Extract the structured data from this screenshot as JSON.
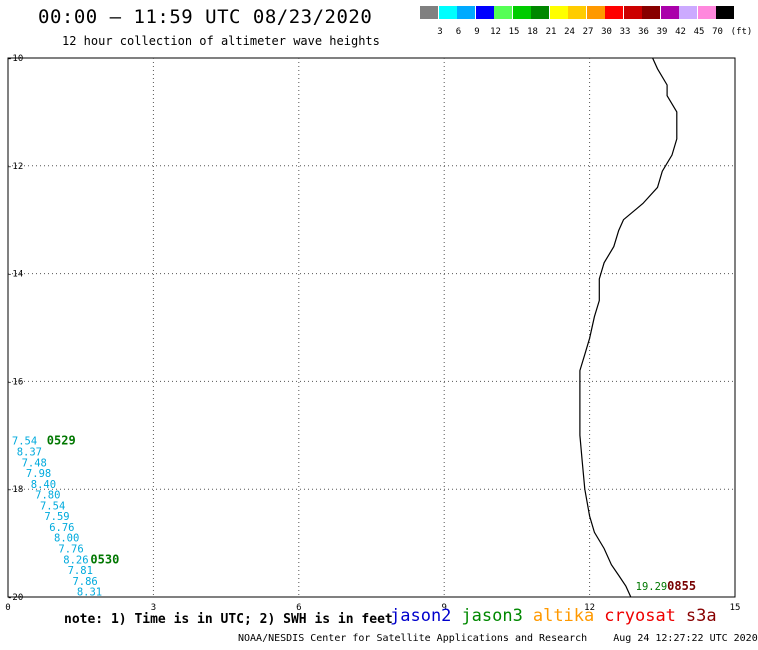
{
  "header": {
    "title": "00:00 – 11:59 UTC 08/23/2020",
    "subtitle": "12 hour collection of altimeter wave heights"
  },
  "legend": {
    "unit_label": "(ft)",
    "bins": [
      {
        "label": "3",
        "color": "#808080"
      },
      {
        "label": "6",
        "color": "#00ffff"
      },
      {
        "label": "9",
        "color": "#00aaff"
      },
      {
        "label": "12",
        "color": "#0000ff"
      },
      {
        "label": "15",
        "color": "#55ff55"
      },
      {
        "label": "18",
        "color": "#00cc00"
      },
      {
        "label": "21",
        "color": "#008800"
      },
      {
        "label": "24",
        "color": "#ffff00"
      },
      {
        "label": "27",
        "color": "#ffcc00"
      },
      {
        "label": "30",
        "color": "#ff9900"
      },
      {
        "label": "33",
        "color": "#ff0000"
      },
      {
        "label": "36",
        "color": "#cc0000"
      },
      {
        "label": "39",
        "color": "#880000"
      },
      {
        "label": "42",
        "color": "#aa00aa"
      },
      {
        "label": "45",
        "color": "#ccaaff"
      },
      {
        "label": "70",
        "color": "#ff88dd"
      },
      {
        "label": "",
        "color": "#000000"
      }
    ]
  },
  "map": {
    "lon_range": [
      0,
      15
    ],
    "lat_range": [
      -20,
      -10
    ],
    "x_ticks": [
      "0",
      "3",
      "6",
      "9",
      "12",
      "15"
    ],
    "y_ticks": [
      "-10",
      "-12",
      "-14",
      "-16",
      "-18",
      "-20"
    ],
    "coastline": [
      [
        13.3,
        -10.0
      ],
      [
        13.4,
        -10.2
      ],
      [
        13.6,
        -10.5
      ],
      [
        13.6,
        -10.7
      ],
      [
        13.8,
        -11.0
      ],
      [
        13.8,
        -11.5
      ],
      [
        13.7,
        -11.8
      ],
      [
        13.5,
        -12.1
      ],
      [
        13.4,
        -12.4
      ],
      [
        13.1,
        -12.7
      ],
      [
        12.7,
        -13.0
      ],
      [
        12.6,
        -13.2
      ],
      [
        12.5,
        -13.5
      ],
      [
        12.3,
        -13.8
      ],
      [
        12.2,
        -14.1
      ],
      [
        12.2,
        -14.5
      ],
      [
        12.1,
        -14.8
      ],
      [
        12.0,
        -15.2
      ],
      [
        11.9,
        -15.5
      ],
      [
        11.8,
        -15.8
      ],
      [
        11.8,
        -16.2
      ],
      [
        11.8,
        -16.6
      ],
      [
        11.8,
        -17.0
      ],
      [
        11.85,
        -17.5
      ],
      [
        11.9,
        -18.0
      ],
      [
        12.0,
        -18.5
      ],
      [
        12.1,
        -18.8
      ],
      [
        12.3,
        -19.1
      ],
      [
        12.45,
        -19.4
      ],
      [
        12.6,
        -19.6
      ],
      [
        12.75,
        -19.8
      ],
      [
        12.85,
        -20.0
      ]
    ]
  },
  "tracks": [
    {
      "satellite": "jason3",
      "color": "#00aadd",
      "pass_labels": [
        {
          "text": "0529",
          "lon": 0.8,
          "lat": -17.1,
          "color": "#007700"
        },
        {
          "text": "0530",
          "lon": 1.7,
          "lat": -19.3,
          "color": "#007700"
        }
      ],
      "points": [
        {
          "value": "7.54",
          "lon": 0.08,
          "lat": -17.1
        },
        {
          "value": "8.37",
          "lon": 0.18,
          "lat": -17.3
        },
        {
          "value": "7.48",
          "lon": 0.28,
          "lat": -17.5
        },
        {
          "value": "7.98",
          "lon": 0.37,
          "lat": -17.7
        },
        {
          "value": "8.40",
          "lon": 0.47,
          "lat": -17.9
        },
        {
          "value": "7.80",
          "lon": 0.56,
          "lat": -18.1
        },
        {
          "value": "7.54",
          "lon": 0.66,
          "lat": -18.3
        },
        {
          "value": "7.59",
          "lon": 0.75,
          "lat": -18.5
        },
        {
          "value": "6.76",
          "lon": 0.85,
          "lat": -18.7
        },
        {
          "value": "8.00",
          "lon": 0.95,
          "lat": -18.9
        },
        {
          "value": "7.76",
          "lon": 1.04,
          "lat": -19.1
        },
        {
          "value": "8.26",
          "lon": 1.14,
          "lat": -19.3
        },
        {
          "value": "7.81",
          "lon": 1.23,
          "lat": -19.5
        },
        {
          "value": "7.86",
          "lon": 1.33,
          "lat": -19.7
        },
        {
          "value": "8.31",
          "lon": 1.42,
          "lat": -19.9
        }
      ]
    },
    {
      "satellite": "s3a",
      "color": "#007700",
      "pass_labels": [
        {
          "text": "0855",
          "lon": 13.6,
          "lat": -19.8,
          "color": "#770000"
        }
      ],
      "points": [
        {
          "value": "19.29",
          "lon": 12.95,
          "lat": -19.8
        }
      ]
    }
  ],
  "footer": {
    "note": "note: 1) Time is in UTC; 2) SWH is in feet",
    "satellites": [
      {
        "name": "jason2",
        "color": "#0000cc"
      },
      {
        "name": "jason3",
        "color": "#008800"
      },
      {
        "name": "altika",
        "color": "#ff9900"
      },
      {
        "name": "cryosat",
        "color": "#ee0000"
      },
      {
        "name": "s3a",
        "color": "#880000"
      }
    ],
    "credit": "NOAA/NESDIS Center for Satellite Applications and Research",
    "timestamp": "Aug 24 12:27:22 UTC 2020"
  }
}
